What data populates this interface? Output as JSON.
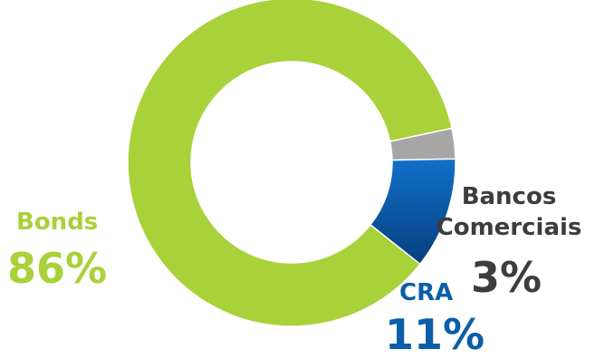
{
  "chart_data": {
    "type": "pie",
    "style": "donut",
    "slices": [
      {
        "label": "Bonds",
        "value": 86,
        "display": "86%",
        "color": "#a9d13a"
      },
      {
        "label": "Bancos Comerciais",
        "value": 3,
        "display": "3%",
        "color": "#a6a6a6"
      },
      {
        "label": "CRA",
        "value": 11,
        "display": "11%",
        "color": "#0b5ea8"
      }
    ],
    "legend": "none"
  },
  "labels": {
    "bonds_name": "Bonds",
    "bonds_value": "86%",
    "bancos_name": "Bancos Comerciais",
    "bancos_value": "3%",
    "cra_name": "CRA",
    "cra_value": "11%"
  },
  "colors": {
    "bonds_text": "#a9d13a",
    "bancos_text": "#3d3d3d",
    "cra_text": "#0b5ea8"
  }
}
